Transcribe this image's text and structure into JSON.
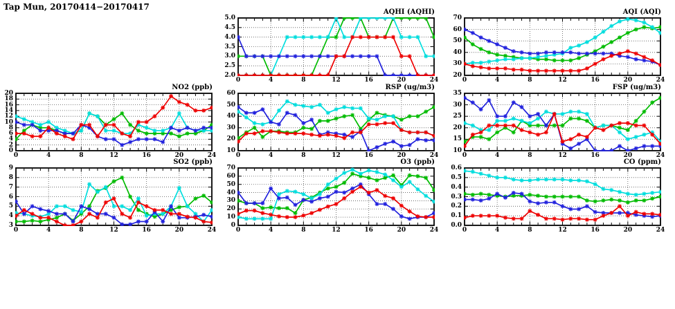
{
  "page": {
    "title": "Tap Mun, 20170414−20170417"
  },
  "chart_data": {
    "type": "line",
    "x_unit": "hour",
    "x_range": [
      0,
      24
    ],
    "x_tick_step": 4,
    "grid": "dotted",
    "legend": "none",
    "marker": "asterisk",
    "colors": {
      "red": "#ee0000",
      "green": "#00bb00",
      "blue": "#2222dd",
      "cyan": "#00dddd"
    },
    "charts": [
      {
        "id": "aqhi",
        "title": "AQHI (AQHI)",
        "ymin": 2,
        "ymax": 5,
        "ystep": 0.5,
        "ydec": 1,
        "xmin": 0,
        "xmax": 24,
        "xstep": 4,
        "series": [
          {
            "color": "green",
            "values": [
              3,
              3,
              3,
              3,
              2,
              2,
              2,
              2,
              2,
              2,
              3,
              4,
              4,
              5,
              5,
              5,
              4,
              4,
              4,
              5,
              5,
              5,
              5,
              5,
              4
            ]
          },
          {
            "color": "cyan",
            "values": [
              2,
              2,
              2,
              2,
              2,
              3,
              4,
              4,
              4,
              4,
              4,
              4,
              5,
              4,
              4,
              5,
              5,
              5,
              5,
              5,
              4,
              4,
              4,
              3,
              3
            ]
          },
          {
            "color": "blue",
            "values": [
              4,
              3,
              3,
              3,
              3,
              3,
              3,
              3,
              3,
              3,
              3,
              3,
              3,
              3,
              3,
              3,
              3,
              3,
              2,
              2,
              2,
              2,
              2,
              2,
              2
            ]
          },
          {
            "color": "red",
            "values": [
              2,
              2,
              2,
              2,
              2,
              2,
              2,
              2,
              2,
              2,
              2,
              2,
              3,
              3,
              4,
              4,
              4,
              4,
              4,
              4,
              3,
              3,
              2,
              2,
              2
            ]
          }
        ]
      },
      {
        "id": "aqi",
        "title": "AQI (AQI)",
        "ymin": 20,
        "ymax": 70,
        "ystep": 10,
        "ydec": 0,
        "xmin": 0,
        "xmax": 24,
        "xstep": 4,
        "series": [
          {
            "color": "green",
            "values": [
              53,
              47,
              43,
              40,
              38,
              37,
              36,
              35,
              35,
              34,
              34,
              33,
              33,
              33,
              35,
              38,
              41,
              45,
              49,
              53,
              57,
              60,
              62,
              61,
              62
            ]
          },
          {
            "color": "cyan",
            "values": [
              30,
              31,
              31,
              32,
              33,
              34,
              34,
              35,
              35,
              36,
              37,
              38,
              39,
              44,
              46,
              49,
              53,
              58,
              63,
              67,
              69,
              68,
              66,
              62,
              57
            ]
          },
          {
            "color": "blue",
            "values": [
              60,
              57,
              53,
              50,
              47,
              44,
              41,
              40,
              39,
              39,
              40,
              40,
              40,
              40,
              39,
              39,
              39,
              39,
              39,
              37,
              36,
              34,
              33,
              32,
              29
            ]
          },
          {
            "color": "red",
            "values": [
              30,
              28,
              27,
              26,
              26,
              26,
              25,
              25,
              24,
              24,
              24,
              24,
              24,
              24,
              24,
              26,
              30,
              34,
              37,
              39,
              41,
              39,
              36,
              33,
              29
            ]
          }
        ]
      },
      {
        "id": "no2",
        "title": "NO2 (ppb)",
        "ymin": 0,
        "ymax": 20,
        "ystep": 2,
        "ydec": 0,
        "xmin": 0,
        "xmax": 24,
        "xstep": 4,
        "series": [
          {
            "color": "green",
            "values": [
              4,
              7,
              9,
              8,
              8,
              7,
              6,
              6,
              7,
              13,
              12,
              9,
              11,
              13,
              9,
              7,
              6,
              6,
              6,
              6,
              5,
              6,
              6,
              7,
              9
            ]
          },
          {
            "color": "cyan",
            "values": [
              12,
              11,
              10,
              9,
              10,
              8,
              7,
              6,
              7,
              13,
              12,
              7,
              7,
              6,
              6,
              9,
              8,
              7,
              7,
              8,
              13,
              8,
              7,
              7,
              7
            ]
          },
          {
            "color": "blue",
            "values": [
              10,
              9,
              9,
              7,
              7,
              7,
              6,
              6,
              9,
              8,
              5,
              4,
              4,
              2,
              3,
              4,
              4,
              4,
              3,
              8,
              7,
              8,
              7,
              8,
              8
            ]
          },
          {
            "color": "red",
            "values": [
              6,
              6,
              5,
              5,
              8,
              6,
              5,
              4,
              9,
              9,
              5,
              9,
              9,
              6,
              5,
              10,
              10,
              12,
              15,
              19,
              17,
              16,
              14,
              14,
              15
            ]
          }
        ]
      },
      {
        "id": "rsp",
        "title": "RSP (ug/m3)",
        "ymin": 10,
        "ymax": 60,
        "ystep": 10,
        "ydec": 0,
        "xmin": 0,
        "xmax": 24,
        "xstep": 4,
        "series": [
          {
            "color": "green",
            "values": [
              21,
              26,
              30,
              22,
              27,
              27,
              26,
              26,
              30,
              29,
              36,
              36,
              38,
              40,
              41,
              29,
              37,
              43,
              41,
              40,
              37,
              40,
              40,
              44,
              48
            ]
          },
          {
            "color": "cyan",
            "values": [
              44,
              39,
              34,
              33,
              35,
              45,
              53,
              50,
              49,
              48,
              50,
              43,
              46,
              48,
              47,
              47,
              38,
              37,
              40,
              40,
              28,
              26,
              26,
              26,
              23
            ]
          },
          {
            "color": "blue",
            "values": [
              48,
              43,
              43,
              46,
              35,
              33,
              43,
              41,
              34,
              37,
              24,
              26,
              25,
              24,
              22,
              27,
              10,
              13,
              16,
              18,
              14,
              15,
              20,
              19,
              19
            ]
          },
          {
            "color": "red",
            "values": [
              18,
              25,
              25,
              27,
              27,
              26,
              25,
              25,
              25,
              24,
              23,
              24,
              23,
              21,
              26,
              26,
              33,
              33,
              34,
              34,
              28,
              26,
              26,
              26,
              23
            ]
          }
        ]
      },
      {
        "id": "fsp",
        "title": "FSP (ug/m3)",
        "ymin": 10,
        "ymax": 35,
        "ystep": 5,
        "ydec": 0,
        "xmin": 0,
        "xmax": 24,
        "xstep": 4,
        "series": [
          {
            "color": "green",
            "values": [
              14,
              16,
              16,
              15,
              18,
              20,
              18,
              23,
              21,
              21,
              21,
              21,
              21,
              24,
              24,
              23,
              20,
              21,
              21,
              20,
              19,
              23,
              27,
              31,
              33
            ]
          },
          {
            "color": "cyan",
            "values": [
              22,
              21,
              19,
              19,
              23,
              23,
              24,
              23,
              22,
              24,
              27,
              26,
              26,
              27,
              27,
              26,
              20,
              21,
              21,
              18,
              15,
              16,
              17,
              18,
              14
            ]
          },
          {
            "color": "blue",
            "values": [
              33,
              31,
              28,
              32,
              25,
              25,
              31,
              29,
              25,
              26,
              21,
              26,
              13,
              11,
              13,
              15,
              10,
              10,
              10,
              12,
              10,
              11,
              12,
              12,
              12
            ]
          },
          {
            "color": "red",
            "values": [
              12,
              17,
              18,
              21,
              21,
              21,
              21,
              19,
              18,
              17,
              18,
              26,
              14,
              15,
              17,
              16,
              20,
              19,
              21,
              22,
              22,
              21,
              21,
              17,
              13
            ]
          }
        ]
      },
      {
        "id": "so2",
        "title": "SO2 (ppb)",
        "ymin": 3,
        "ymax": 9,
        "ystep": 1,
        "ydec": 0,
        "xmin": 0,
        "xmax": 24,
        "xstep": 4,
        "series": [
          {
            "color": "green",
            "values": [
              3.4,
              3.4,
              3.5,
              3.4,
              3.6,
              3.8,
              4.2,
              3.5,
              4.2,
              5.0,
              6.6,
              6.9,
              7.6,
              8.0,
              6.0,
              4.6,
              4.2,
              3.9,
              4.2,
              4.6,
              4.9,
              5.0,
              5.8,
              6.1,
              5.4
            ]
          },
          {
            "color": "cyan",
            "values": [
              4.3,
              4.2,
              4.0,
              3.9,
              4.2,
              5.0,
              5.0,
              4.6,
              4.4,
              7.3,
              6.5,
              7.0,
              5.0,
              5.0,
              4.6,
              5.8,
              4.0,
              4.2,
              4.2,
              5.0,
              6.9,
              5.0,
              4.2,
              3.4,
              4.6
            ]
          },
          {
            "color": "blue",
            "values": [
              5.5,
              4.2,
              5.0,
              4.7,
              4.5,
              4.2,
              4.2,
              3.4,
              5.0,
              4.7,
              4.2,
              4.2,
              3.8,
              3.1,
              3.1,
              3.4,
              3.4,
              4.4,
              3.4,
              5.0,
              3.8,
              3.8,
              3.9,
              4.1,
              3.9
            ]
          },
          {
            "color": "red",
            "values": [
              4.0,
              4.6,
              4.2,
              3.8,
              3.8,
              3.4,
              3.0,
              3.0,
              3.4,
              4.2,
              3.8,
              5.4,
              5.8,
              4.2,
              3.8,
              5.4,
              5.0,
              4.6,
              4.6,
              4.2,
              4.2,
              3.9,
              3.8,
              3.4,
              3.3
            ]
          }
        ]
      },
      {
        "id": "o3",
        "title": "O3 (ppb)",
        "ymin": 0,
        "ymax": 70,
        "ystep": 10,
        "ydec": 0,
        "xmin": 0,
        "xmax": 24,
        "xstep": 4,
        "series": [
          {
            "color": "green",
            "values": [
              30,
              27,
              27,
              21,
              22,
              21,
              21,
              15,
              31,
              34,
              40,
              45,
              47,
              52,
              63,
              60,
              58,
              55,
              58,
              61,
              49,
              61,
              60,
              58,
              43
            ]
          },
          {
            "color": "cyan",
            "values": [
              10,
              8,
              8,
              8,
              8,
              38,
              42,
              41,
              38,
              33,
              38,
              50,
              57,
              64,
              68,
              63,
              67,
              65,
              62,
              55,
              47,
              53,
              44,
              36,
              29
            ]
          },
          {
            "color": "blue",
            "values": [
              40,
              27,
              27,
              27,
              45,
              33,
              34,
              25,
              31,
              29,
              33,
              35,
              41,
              40,
              45,
              50,
              38,
              26,
              26,
              20,
              11,
              8,
              10,
              10,
              15
            ]
          },
          {
            "color": "red",
            "values": [
              14,
              18,
              18,
              15,
              13,
              11,
              10,
              10,
              12,
              15,
              19,
              23,
              26,
              33,
              41,
              47,
              40,
              43,
              36,
              33,
              24,
              17,
              11,
              10,
              10
            ]
          }
        ]
      },
      {
        "id": "co",
        "title": "CO (ppm)",
        "ymin": 0.0,
        "ymax": 0.6,
        "ystep": 0.1,
        "ydec": 1,
        "xmin": 0,
        "xmax": 24,
        "xstep": 4,
        "series": [
          {
            "color": "green",
            "values": [
              0.33,
              0.32,
              0.33,
              0.32,
              0.31,
              0.3,
              0.31,
              0.31,
              0.32,
              0.31,
              0.3,
              0.3,
              0.3,
              0.3,
              0.3,
              0.26,
              0.25,
              0.26,
              0.27,
              0.26,
              0.24,
              0.26,
              0.26,
              0.28,
              0.3
            ]
          },
          {
            "color": "cyan",
            "values": [
              0.57,
              0.56,
              0.54,
              0.52,
              0.5,
              0.5,
              0.48,
              0.47,
              0.47,
              0.48,
              0.48,
              0.48,
              0.48,
              0.47,
              0.47,
              0.46,
              0.43,
              0.38,
              0.37,
              0.35,
              0.33,
              0.32,
              0.33,
              0.34,
              0.35
            ]
          },
          {
            "color": "blue",
            "values": [
              0.27,
              0.27,
              0.26,
              0.28,
              0.33,
              0.29,
              0.34,
              0.33,
              0.25,
              0.23,
              0.24,
              0.24,
              0.2,
              0.17,
              0.17,
              0.2,
              0.14,
              0.13,
              0.13,
              0.13,
              0.13,
              0.11,
              0.1,
              0.09,
              0.1
            ]
          },
          {
            "color": "red",
            "values": [
              0.08,
              0.1,
              0.1,
              0.1,
              0.1,
              0.08,
              0.07,
              0.07,
              0.15,
              0.11,
              0.07,
              0.07,
              0.06,
              0.07,
              0.07,
              0.06,
              0.06,
              0.1,
              0.13,
              0.2,
              0.1,
              0.14,
              0.12,
              0.12,
              0.11
            ]
          }
        ]
      }
    ]
  }
}
